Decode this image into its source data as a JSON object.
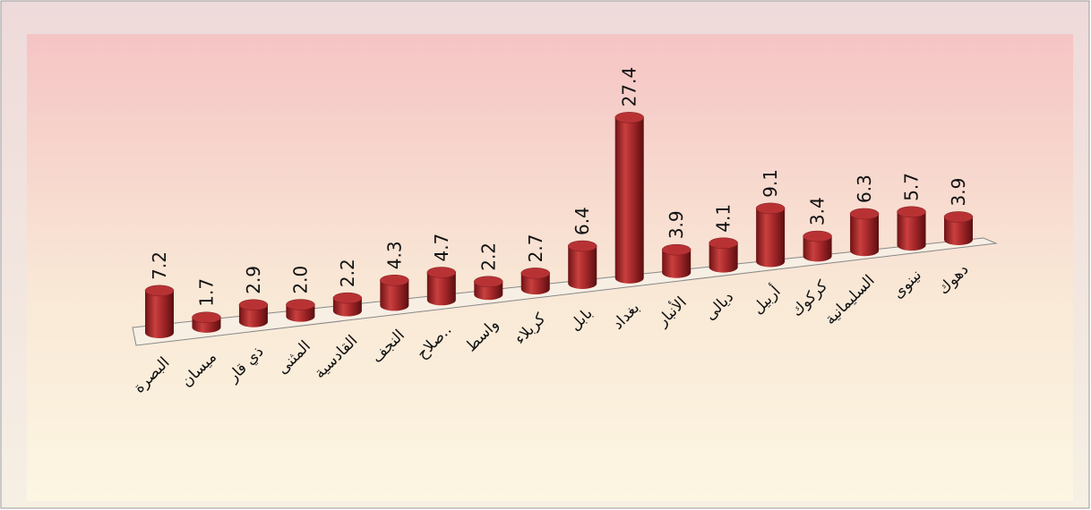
{
  "chart_data": {
    "type": "bar",
    "categories": [
      "البصرة",
      "ميسان",
      "ذي قار",
      "المثنى",
      "القادسية",
      "النجف",
      "صلاح..",
      "واسط",
      "كربلاء",
      "بابل",
      "بغداد",
      "الأنبار",
      "ديالى",
      "أربيل",
      "كركوك",
      "السليمانية",
      "نينوى",
      "دهوك"
    ],
    "values": [
      7.2,
      1.7,
      2.9,
      2.0,
      2.2,
      4.3,
      4.7,
      2.2,
      2.7,
      6.4,
      27.4,
      3.9,
      4.1,
      9.1,
      3.4,
      6.3,
      5.7,
      3.9
    ],
    "value_labels": [
      "7.2",
      "1.7",
      "2.9",
      "2.0",
      "2.2",
      "4.3",
      "4.7",
      "2.2",
      "2.7",
      "6.4",
      "27.4",
      "3.9",
      "4.1",
      "9.1",
      "3.4",
      "6.3",
      "5.7",
      "3.9"
    ],
    "color": "#a8282a"
  }
}
